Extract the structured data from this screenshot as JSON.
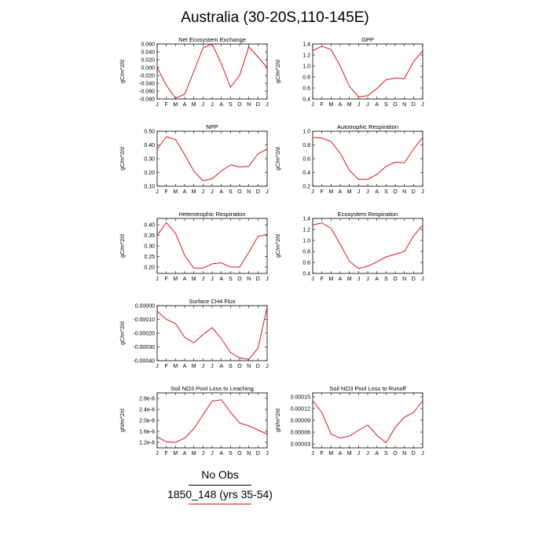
{
  "title": "Australia (30-20S,110-145E)",
  "colors": {
    "series": "#e8121b",
    "obs": "#000000"
  },
  "legend": {
    "obs_label": "No Obs",
    "model_label": "1850_148 (yrs 35-54)"
  },
  "chart_data": [
    {
      "type": "line",
      "title": "Net Ecosystem Exchange",
      "ylabel": "gC/m^2/d",
      "categories": [
        "J",
        "F",
        "M",
        "A",
        "M",
        "J",
        "J",
        "A",
        "S",
        "O",
        "N",
        "D",
        "J"
      ],
      "ylim": [
        -0.08,
        0.06
      ],
      "yticks": [
        0.06,
        0.04,
        0.02,
        0.0,
        -0.02,
        -0.04,
        -0.06,
        -0.08
      ],
      "ytick_labels": [
        "0.060",
        "0.040",
        "0.020",
        "0.000",
        "-0.020",
        "-0.040",
        "-0.060",
        "-0.080"
      ],
      "series": [
        {
          "values": [
            0.0,
            -0.045,
            -0.078,
            -0.068,
            -0.01,
            0.05,
            0.06,
            0.01,
            -0.05,
            -0.02,
            0.053,
            0.027,
            0.0
          ]
        }
      ]
    },
    {
      "type": "line",
      "title": "GPP",
      "ylabel": "gC/m^2/d",
      "categories": [
        "J",
        "F",
        "M",
        "A",
        "M",
        "J",
        "J",
        "A",
        "S",
        "O",
        "N",
        "D",
        "J"
      ],
      "ylim": [
        0.4,
        1.4
      ],
      "yticks": [
        1.4,
        1.2,
        1.0,
        0.8,
        0.6,
        0.4
      ],
      "ytick_labels": [
        "1.4",
        "1.2",
        "1.0",
        "0.8",
        "0.6",
        "0.4"
      ],
      "series": [
        {
          "values": [
            1.28,
            1.36,
            1.3,
            1.0,
            0.63,
            0.44,
            0.46,
            0.59,
            0.75,
            0.78,
            0.77,
            1.08,
            1.28
          ]
        }
      ]
    },
    {
      "type": "line",
      "title": "NPP",
      "ylabel": "gC/m^2/d",
      "categories": [
        "J",
        "F",
        "M",
        "A",
        "M",
        "J",
        "J",
        "A",
        "S",
        "O",
        "N",
        "D",
        "J"
      ],
      "ylim": [
        0.1,
        0.5
      ],
      "yticks": [
        0.5,
        0.4,
        0.3,
        0.2,
        0.1
      ],
      "ytick_labels": [
        "0.50",
        "0.40",
        "0.30",
        "0.20",
        "0.10"
      ],
      "series": [
        {
          "values": [
            0.37,
            0.46,
            0.44,
            0.33,
            0.21,
            0.14,
            0.155,
            0.21,
            0.255,
            0.24,
            0.245,
            0.335,
            0.37
          ]
        }
      ]
    },
    {
      "type": "line",
      "title": "Autotrophic Respiration",
      "ylabel": "gC/m^2/d",
      "categories": [
        "J",
        "F",
        "M",
        "A",
        "M",
        "J",
        "J",
        "A",
        "S",
        "O",
        "N",
        "D",
        "J"
      ],
      "ylim": [
        0.2,
        1.0
      ],
      "yticks": [
        1.0,
        0.8,
        0.6,
        0.4,
        0.2
      ],
      "ytick_labels": [
        "1.0",
        "0.8",
        "0.6",
        "0.4",
        "0.2"
      ],
      "series": [
        {
          "values": [
            0.91,
            0.9,
            0.85,
            0.68,
            0.43,
            0.3,
            0.3,
            0.37,
            0.49,
            0.55,
            0.54,
            0.74,
            0.91
          ]
        }
      ]
    },
    {
      "type": "line",
      "title": "Heterotrophic Respiration",
      "ylabel": "gC/m^2/d",
      "categories": [
        "J",
        "F",
        "M",
        "A",
        "M",
        "J",
        "J",
        "A",
        "S",
        "O",
        "N",
        "D",
        "J"
      ],
      "ylim": [
        0.17,
        0.43
      ],
      "yticks": [
        0.4,
        0.35,
        0.3,
        0.25,
        0.2
      ],
      "ytick_labels": [
        "0.40",
        "0.35",
        "0.30",
        "0.25",
        "0.20"
      ],
      "series": [
        {
          "values": [
            0.35,
            0.41,
            0.36,
            0.255,
            0.195,
            0.195,
            0.215,
            0.22,
            0.2,
            0.2,
            0.27,
            0.345,
            0.355
          ]
        }
      ]
    },
    {
      "type": "line",
      "title": "Ecosystem Respiration",
      "ylabel": "gC/m^2/d",
      "categories": [
        "J",
        "F",
        "M",
        "A",
        "M",
        "J",
        "J",
        "A",
        "S",
        "O",
        "N",
        "D",
        "J"
      ],
      "ylim": [
        0.4,
        1.4
      ],
      "yticks": [
        1.4,
        1.2,
        1.0,
        0.8,
        0.6,
        0.4
      ],
      "ytick_labels": [
        "1.4",
        "1.2",
        "1.0",
        "0.8",
        "0.6",
        "0.4"
      ],
      "series": [
        {
          "values": [
            1.28,
            1.32,
            1.22,
            0.93,
            0.62,
            0.49,
            0.53,
            0.61,
            0.7,
            0.75,
            0.8,
            1.08,
            1.28
          ]
        }
      ]
    },
    {
      "type": "line",
      "title": "Surface CH4 Flux",
      "ylabel": "gC/m^2/d",
      "categories": [
        "J",
        "F",
        "M",
        "A",
        "M",
        "J",
        "J",
        "A",
        "S",
        "O",
        "N",
        "D",
        "J"
      ],
      "ylim": [
        -0.0004,
        0.0
      ],
      "yticks": [
        0.0,
        -0.0001,
        -0.0002,
        -0.0003,
        -0.0004
      ],
      "ytick_labels": [
        "0.00000",
        "-0.00010",
        "-0.00020",
        "-0.00030",
        "-0.00040"
      ],
      "series": [
        {
          "values": [
            -4e-05,
            -0.0001,
            -0.00013,
            -0.00023,
            -0.00027,
            -0.00021,
            -0.00016,
            -0.00024,
            -0.00034,
            -0.00038,
            -0.00039,
            -0.00031,
            -1e-05
          ]
        }
      ]
    },
    {
      "type": "line",
      "title": "Soil NO3 Pool Loss to Leaching",
      "ylabel": "gN/m^2/d",
      "categories": [
        "J",
        "F",
        "M",
        "A",
        "M",
        "J",
        "J",
        "A",
        "S",
        "O",
        "N",
        "D",
        "J"
      ],
      "ylim": [
        1e-06,
        3e-06
      ],
      "yticks": [
        2.8e-06,
        2.4e-06,
        2e-06,
        1.6e-06,
        1.2e-06
      ],
      "ytick_labels": [
        "2.8e-6",
        "2.4e-6",
        "2.0e-6",
        "1.6e-6",
        "1.2e-6"
      ],
      "series": [
        {
          "values": [
            1.4e-06,
            1.22e-06,
            1.2e-06,
            1.35e-06,
            1.7e-06,
            2.2e-06,
            2.7e-06,
            2.75e-06,
            2.3e-06,
            1.9e-06,
            1.8e-06,
            1.65e-06,
            1.5e-06
          ]
        }
      ]
    },
    {
      "type": "line",
      "title": "Soil NO3 Pool Loss to Runoff",
      "ylabel": "gN/m^2/d",
      "categories": [
        "J",
        "F",
        "M",
        "A",
        "M",
        "J",
        "J",
        "A",
        "S",
        "O",
        "N",
        "D",
        "J"
      ],
      "ylim": [
        2e-05,
        0.00016
      ],
      "yticks": [
        0.00015,
        0.00012,
        9e-05,
        6e-05,
        3e-05
      ],
      "ytick_labels": [
        "0.00015",
        "0.00012",
        "0.00009",
        "0.00006",
        "0.00003"
      ],
      "series": [
        {
          "values": [
            0.00014,
            0.00011,
            5.5e-05,
            4.5e-05,
            5e-05,
            6.5e-05,
            7.8e-05,
            5.2e-05,
            3.3e-05,
            7.2e-05,
            9.8e-05,
            0.00011,
            0.00014
          ]
        }
      ]
    }
  ]
}
